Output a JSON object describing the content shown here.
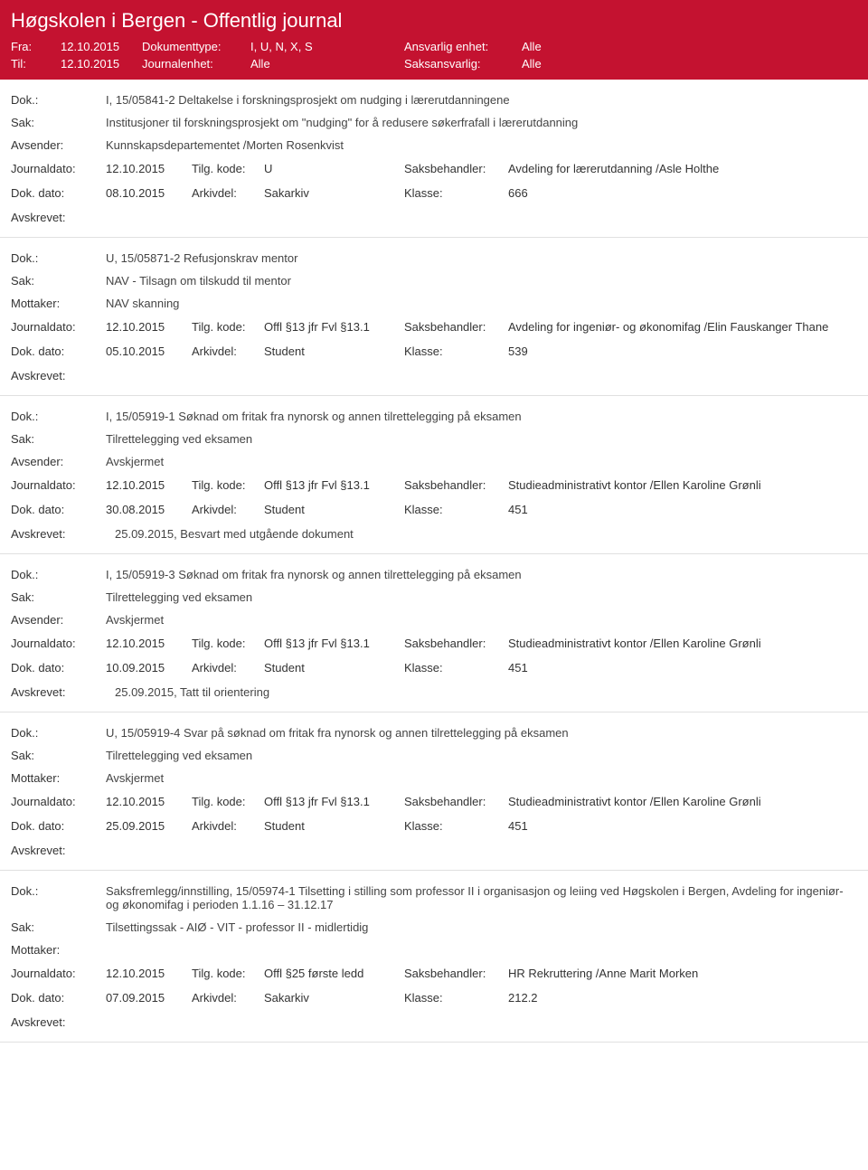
{
  "header": {
    "title": "Høgskolen i Bergen - Offentlig journal",
    "fra_label": "Fra:",
    "fra_value": "12.10.2015",
    "til_label": "Til:",
    "til_value": "12.10.2015",
    "doktype_label": "Dokumenttype:",
    "doktype_value": "I, U, N, X, S",
    "journalenhet_label": "Journalenhet:",
    "journalenhet_value": "Alle",
    "ansvarlig_label": "Ansvarlig enhet:",
    "ansvarlig_value": "Alle",
    "saksansvarlig_label": "Saksansvarlig:",
    "saksansvarlig_value": "Alle"
  },
  "labels": {
    "dok": "Dok.:",
    "sak": "Sak:",
    "avsender": "Avsender:",
    "mottaker": "Mottaker:",
    "journaldato": "Journaldato:",
    "tilgkode": "Tilg. kode:",
    "saksbehandler": "Saksbehandler:",
    "dokdato": "Dok. dato:",
    "arkivdel": "Arkivdel:",
    "klasse": "Klasse:",
    "avskrevet": "Avskrevet:"
  },
  "entries": [
    {
      "dok": "I, 15/05841-2 Deltakelse i forskningsprosjekt om nudging i lærerutdanningene",
      "sak": "Institusjoner til forskningsprosjekt om \"nudging\" for å redusere søkerfrafall i lærerutdanning",
      "party_label": "Avsender:",
      "party_value": "Kunnskapsdepartementet /Morten Rosenkvist",
      "journaldato": "12.10.2015",
      "tilgkode": "U",
      "saksbehandler": "Avdeling for lærerutdanning /Asle Holthe",
      "dokdato": "08.10.2015",
      "arkivdel": "Sakarkiv",
      "klasse": "666",
      "avskrevet": ""
    },
    {
      "dok": "U, 15/05871-2 Refusjonskrav mentor",
      "sak": "NAV - Tilsagn om tilskudd til mentor",
      "party_label": "Mottaker:",
      "party_value": "NAV skanning",
      "journaldato": "12.10.2015",
      "tilgkode": "Offl §13 jfr Fvl §13.1",
      "saksbehandler": "Avdeling for ingeniør- og økonomifag /Elin Fauskanger Thane",
      "dokdato": "05.10.2015",
      "arkivdel": "Student",
      "klasse": "539",
      "avskrevet": ""
    },
    {
      "dok": "I, 15/05919-1 Søknad om fritak fra nynorsk og annen tilrettelegging på eksamen",
      "sak": "Tilrettelegging ved eksamen",
      "party_label": "Avsender:",
      "party_value": "Avskjermet",
      "journaldato": "12.10.2015",
      "tilgkode": "Offl §13 jfr Fvl §13.1",
      "saksbehandler": "Studieadministrativt kontor /Ellen Karoline Grønli",
      "dokdato": "30.08.2015",
      "arkivdel": "Student",
      "klasse": "451",
      "avskrevet": "25.09.2015, Besvart med utgående dokument"
    },
    {
      "dok": "I, 15/05919-3 Søknad om fritak fra nynorsk og annen tilrettelegging på eksamen",
      "sak": "Tilrettelegging ved eksamen",
      "party_label": "Avsender:",
      "party_value": "Avskjermet",
      "journaldato": "12.10.2015",
      "tilgkode": "Offl §13 jfr Fvl §13.1",
      "saksbehandler": "Studieadministrativt kontor /Ellen Karoline Grønli",
      "dokdato": "10.09.2015",
      "arkivdel": "Student",
      "klasse": "451",
      "avskrevet": "25.09.2015, Tatt til orientering"
    },
    {
      "dok": "U, 15/05919-4 Svar på søknad om fritak fra nynorsk og annen tilrettelegging på eksamen",
      "sak": "Tilrettelegging ved eksamen",
      "party_label": "Mottaker:",
      "party_value": "Avskjermet",
      "journaldato": "12.10.2015",
      "tilgkode": "Offl §13 jfr Fvl §13.1",
      "saksbehandler": "Studieadministrativt kontor /Ellen Karoline Grønli",
      "dokdato": "25.09.2015",
      "arkivdel": "Student",
      "klasse": "451",
      "avskrevet": ""
    },
    {
      "dok": "Saksfremlegg/innstilling, 15/05974-1 Tilsetting i stilling som professor II i organisasjon og leiing ved Høgskolen i Bergen, Avdeling for ingeniør- og økonomifag i perioden 1.1.16 – 31.12.17",
      "sak": "Tilsettingssak - AIØ - VIT - professor II - midlertidig",
      "party_label": "Mottaker:",
      "party_value": "",
      "journaldato": "12.10.2015",
      "tilgkode": "Offl §25 første ledd",
      "saksbehandler": "HR Rekruttering /Anne Marit Morken",
      "dokdato": "07.09.2015",
      "arkivdel": "Sakarkiv",
      "klasse": "212.2",
      "avskrevet": ""
    }
  ]
}
